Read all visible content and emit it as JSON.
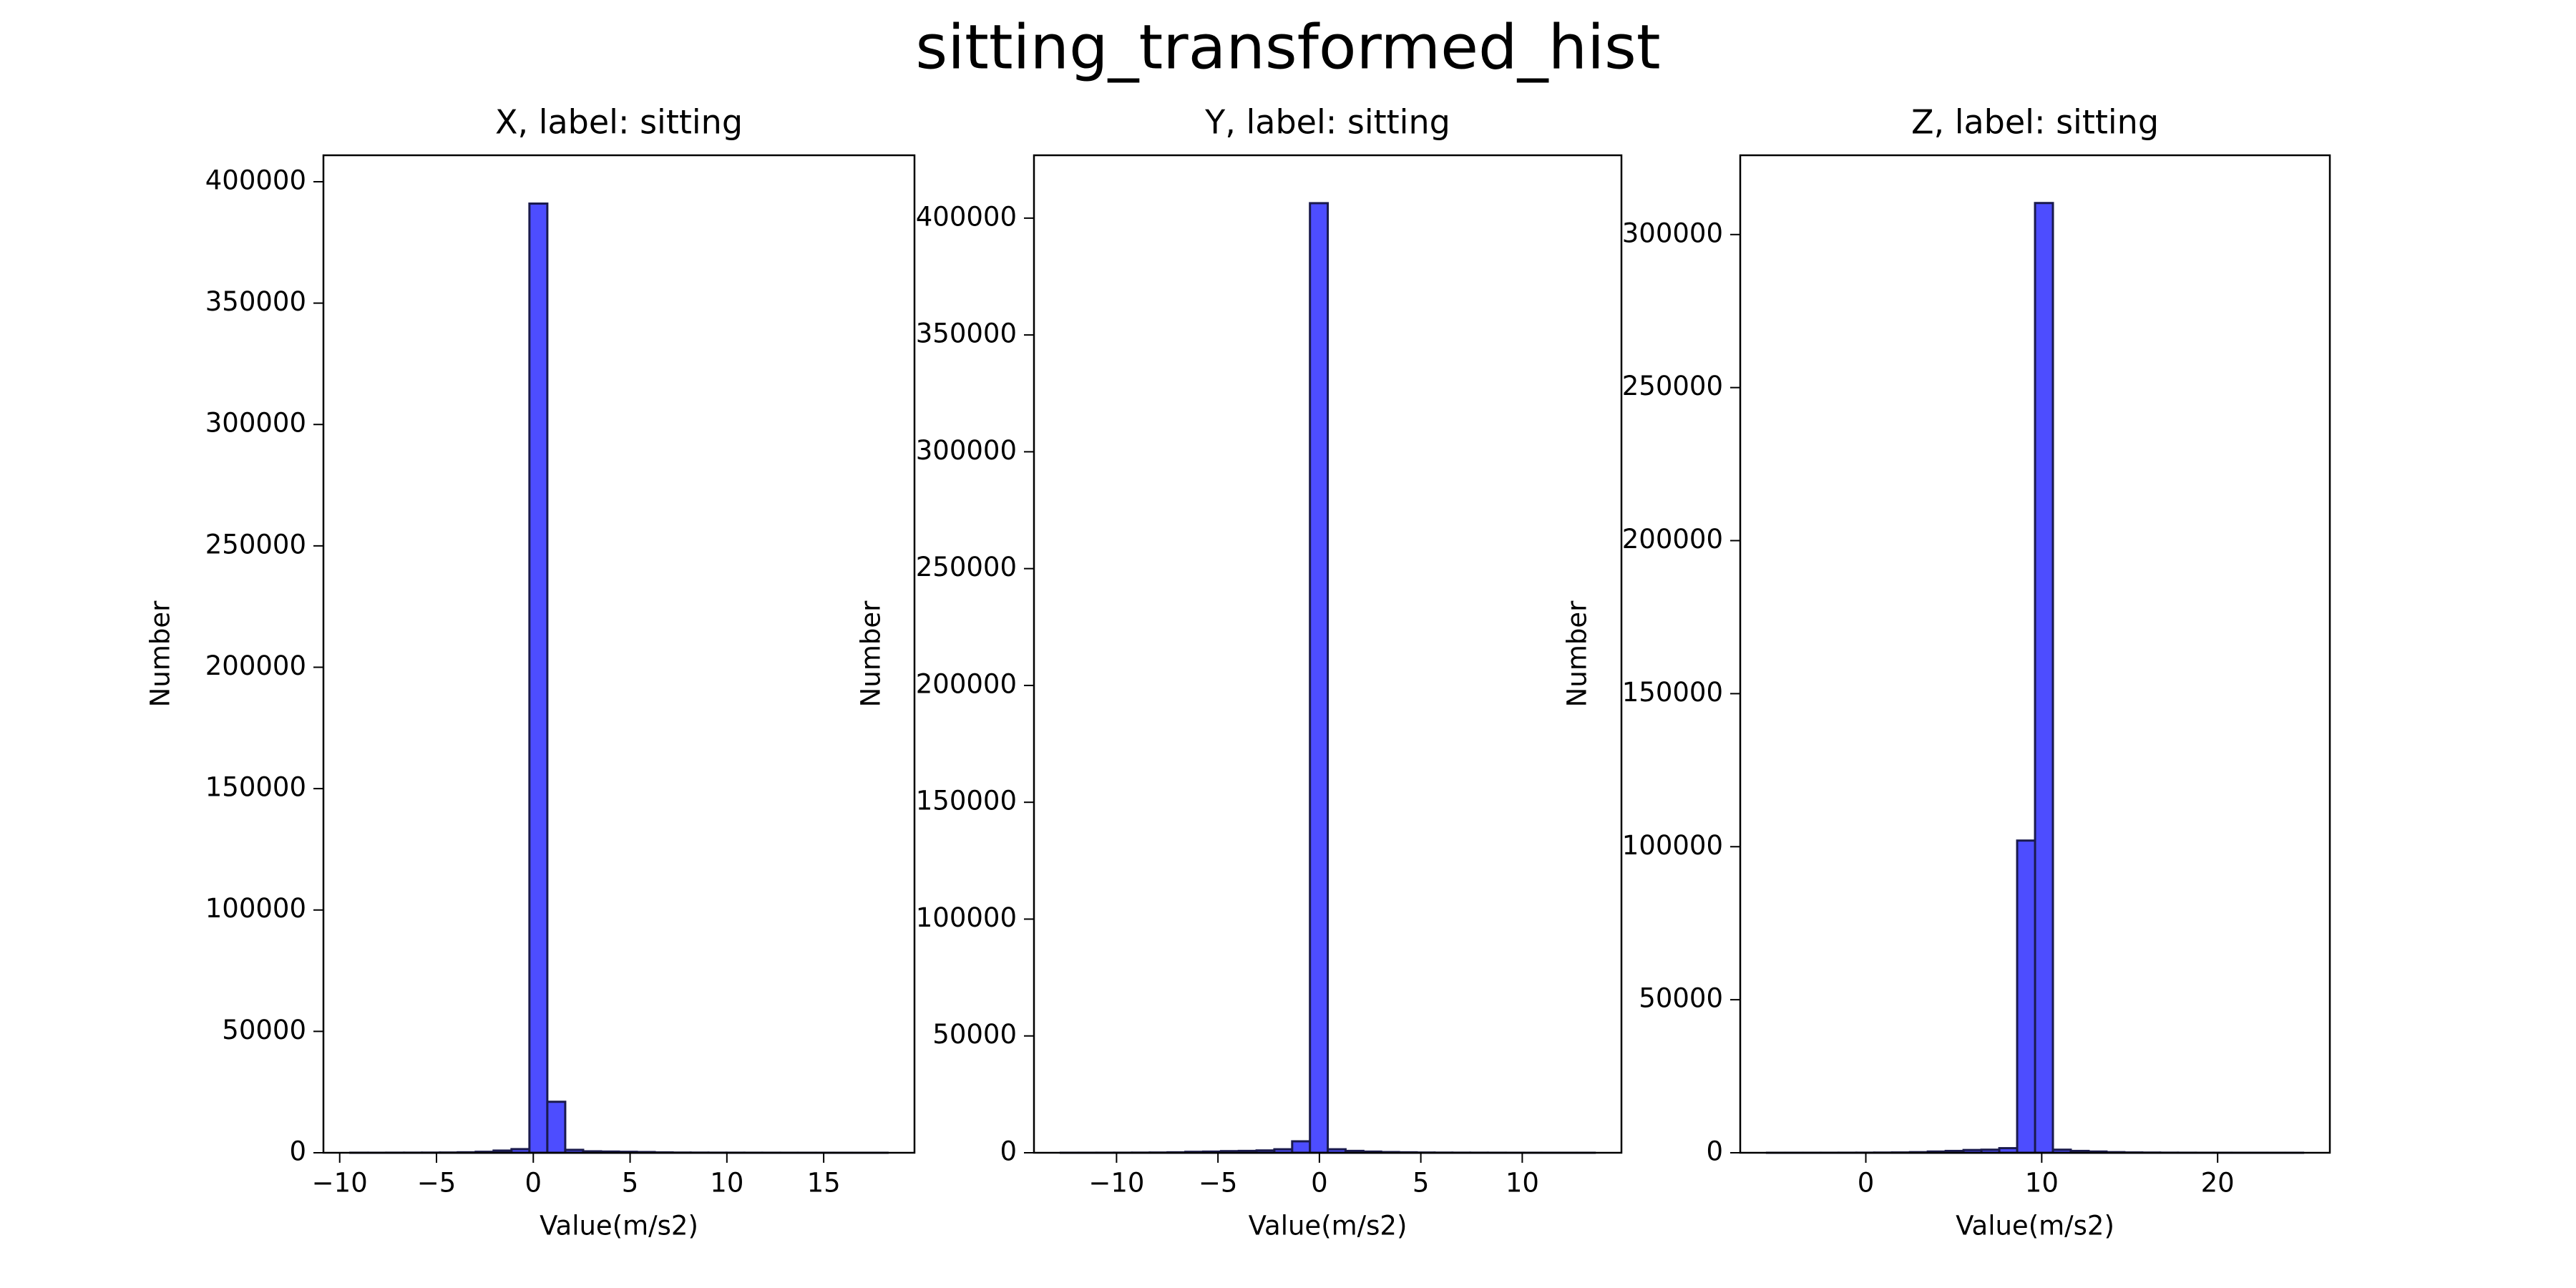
{
  "title": "sitting_transformed_hist",
  "chart_data": [
    {
      "type": "histogram",
      "title": "X, label: sitting",
      "xlabel": "Value(m/s2)",
      "ylabel": "Number",
      "color": "#4d4dff",
      "edgecolor": "#1a1a4d",
      "bins": [
        -9.45,
        -8.525,
        -7.6,
        -6.675,
        -5.75,
        -4.825,
        -3.9,
        -2.975,
        -2.05,
        -1.125,
        -0.2,
        0.725,
        1.65,
        2.575,
        3.5,
        4.425,
        5.35,
        6.275,
        7.2,
        8.125,
        9.05,
        9.975,
        10.9,
        11.825,
        12.75,
        13.675,
        14.6,
        15.525,
        16.45,
        17.375,
        18.3
      ],
      "values": [
        20,
        10,
        30,
        40,
        60,
        100,
        200,
        400,
        900,
        1500,
        391000,
        21000,
        1200,
        600,
        500,
        400,
        300,
        150,
        80,
        60,
        40,
        30,
        20,
        15,
        10,
        8,
        5,
        3,
        2,
        1
      ],
      "xlim": [
        -10.84,
        19.69
      ],
      "ylim": [
        0,
        410900
      ],
      "xticks": [
        {
          "value": -10,
          "label": "−10"
        },
        {
          "value": -5,
          "label": "−5"
        },
        0,
        5,
        10,
        15
      ],
      "yticks": [
        0,
        50000,
        100000,
        150000,
        200000,
        250000,
        300000,
        350000,
        400000
      ]
    },
    {
      "type": "histogram",
      "title": "Y, label: sitting",
      "xlabel": "Value(m/s2)",
      "ylabel": "Number",
      "color": "#4d4dff",
      "edgecolor": "#1a1a4d",
      "bins": [
        -12.75,
        -11.8725,
        -10.995,
        -10.1175,
        -9.24,
        -8.3625,
        -7.485,
        -6.6075,
        -5.73,
        -4.8525,
        -3.975,
        -3.0975,
        -2.22,
        -1.3425,
        -0.465,
        0.4125,
        1.29,
        2.1675,
        3.045,
        3.9225,
        4.8,
        5.6775,
        6.555,
        7.4325,
        8.31,
        9.1875,
        10.065,
        10.9425,
        11.82,
        12.6975,
        13.575
      ],
      "values": [
        5,
        10,
        20,
        30,
        60,
        100,
        200,
        400,
        500,
        700,
        800,
        1000,
        1500,
        4900,
        406400,
        1500,
        800,
        500,
        300,
        200,
        100,
        60,
        40,
        30,
        20,
        10,
        8,
        5,
        3,
        2
      ],
      "xlim": [
        -14.07,
        14.89
      ],
      "ylim": [
        0,
        426900
      ],
      "xticks": [
        {
          "value": -10,
          "label": "−10"
        },
        {
          "value": -5,
          "label": "−5"
        },
        0,
        5,
        10
      ],
      "yticks": [
        0,
        50000,
        100000,
        150000,
        200000,
        250000,
        300000,
        350000,
        400000
      ]
    },
    {
      "type": "histogram",
      "title": "Z, label: sitting",
      "xlabel": "Value(m/s2)",
      "ylabel": "Number",
      "color": "#4d4dff",
      "edgecolor": "#1a1a4d",
      "bins": [
        -5.62,
        -4.604,
        -3.588,
        -2.572,
        -1.556,
        -0.54,
        0.476,
        1.492,
        2.508,
        3.524,
        4.54,
        5.556,
        6.572,
        7.588,
        8.604,
        9.62,
        10.636,
        11.652,
        12.668,
        13.684,
        14.7,
        15.716,
        16.732,
        17.748,
        18.764,
        19.78,
        20.796,
        21.812,
        22.828,
        23.844,
        24.86
      ],
      "values": [
        2,
        3,
        5,
        10,
        20,
        30,
        60,
        100,
        200,
        400,
        600,
        900,
        1000,
        1500,
        102000,
        310300,
        1000,
        600,
        400,
        200,
        100,
        60,
        30,
        20,
        10,
        8,
        5,
        3,
        2,
        1
      ],
      "xlim": [
        -7.14,
        26.38
      ],
      "ylim": [
        0,
        325900
      ],
      "xticks": [
        0,
        10,
        20
      ],
      "yticks": [
        0,
        50000,
        100000,
        150000,
        200000,
        250000,
        300000
      ]
    }
  ]
}
